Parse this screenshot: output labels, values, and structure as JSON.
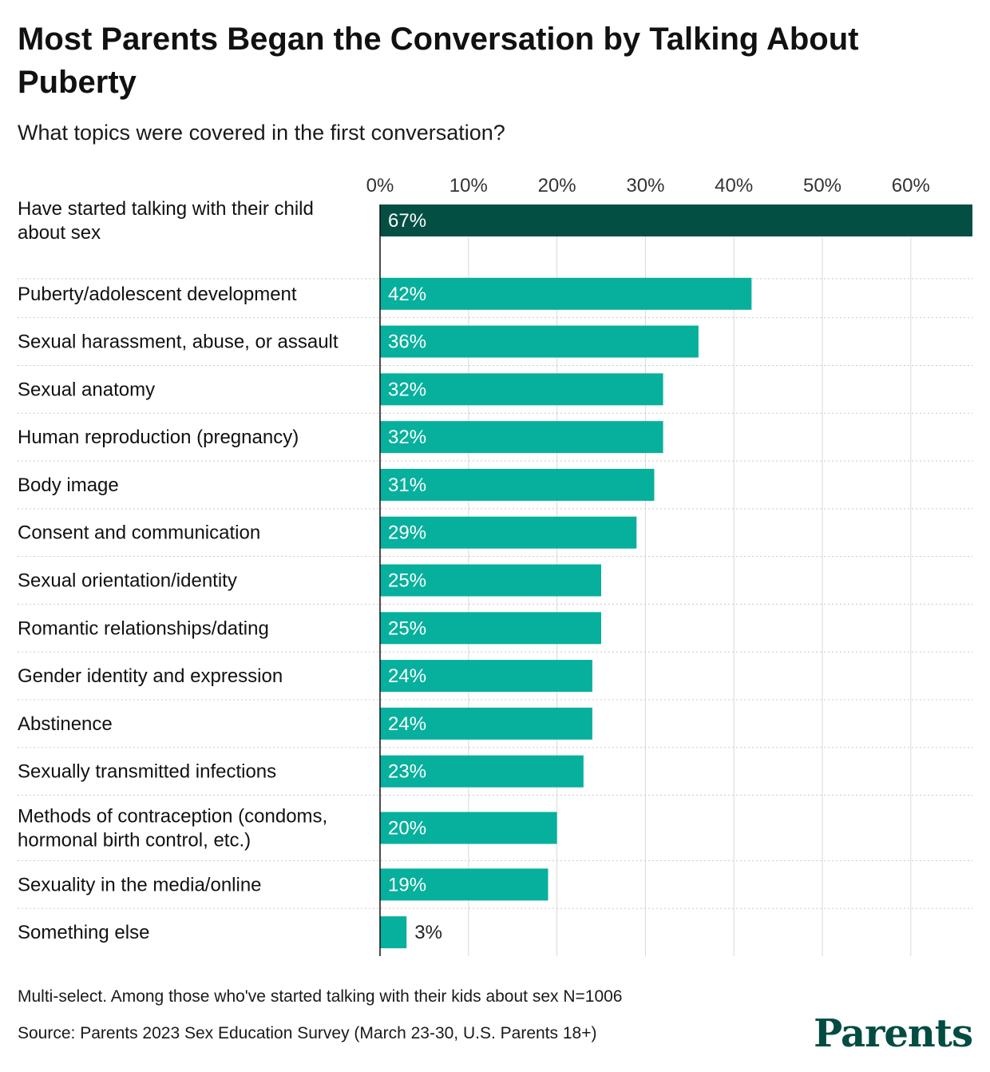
{
  "title": "Most Parents Began the Conversation by Talking About Puberty",
  "subtitle": "What topics were covered in the first conversation?",
  "note": "Multi-select. Among those who've started talking with their kids about sex N=1006",
  "source": "Source: Parents 2023 Sex Education Survey (March 23-30, U.S. Parents 18+)",
  "logo": "Parents",
  "colors": {
    "highlight": "#034f44",
    "bar": "#06b09c",
    "grid": "#d8d8d8",
    "separator": "#c8c8c8",
    "axis": "#111111"
  },
  "chart_data": {
    "type": "bar",
    "orientation": "horizontal",
    "categories": [
      "Have started talking with their child about sex",
      "Puberty/adolescent development",
      "Sexual harassment, abuse, or assault",
      "Sexual anatomy",
      "Human reproduction (pregnancy)",
      "Body image",
      "Consent and communication",
      "Sexual orientation/identity",
      "Romantic relationships/dating",
      "Gender identity and expression",
      "Abstinence",
      "Sexually transmitted infections",
      "Methods of contraception (condoms, hormonal birth control, etc.)",
      "Sexuality in the media/online",
      "Something else"
    ],
    "values": [
      67,
      42,
      36,
      32,
      32,
      31,
      29,
      25,
      25,
      24,
      24,
      23,
      20,
      19,
      3
    ],
    "value_labels": [
      "67%",
      "42%",
      "36%",
      "32%",
      "32%",
      "31%",
      "29%",
      "25%",
      "25%",
      "24%",
      "24%",
      "23%",
      "20%",
      "19%",
      "3%"
    ],
    "x_ticks": [
      0,
      10,
      20,
      30,
      40,
      50,
      60
    ],
    "x_tick_labels": [
      "0%",
      "10%",
      "20%",
      "30%",
      "40%",
      "50%",
      "60%"
    ],
    "xlim": [
      0,
      67
    ],
    "grid": true,
    "legend": "none"
  }
}
